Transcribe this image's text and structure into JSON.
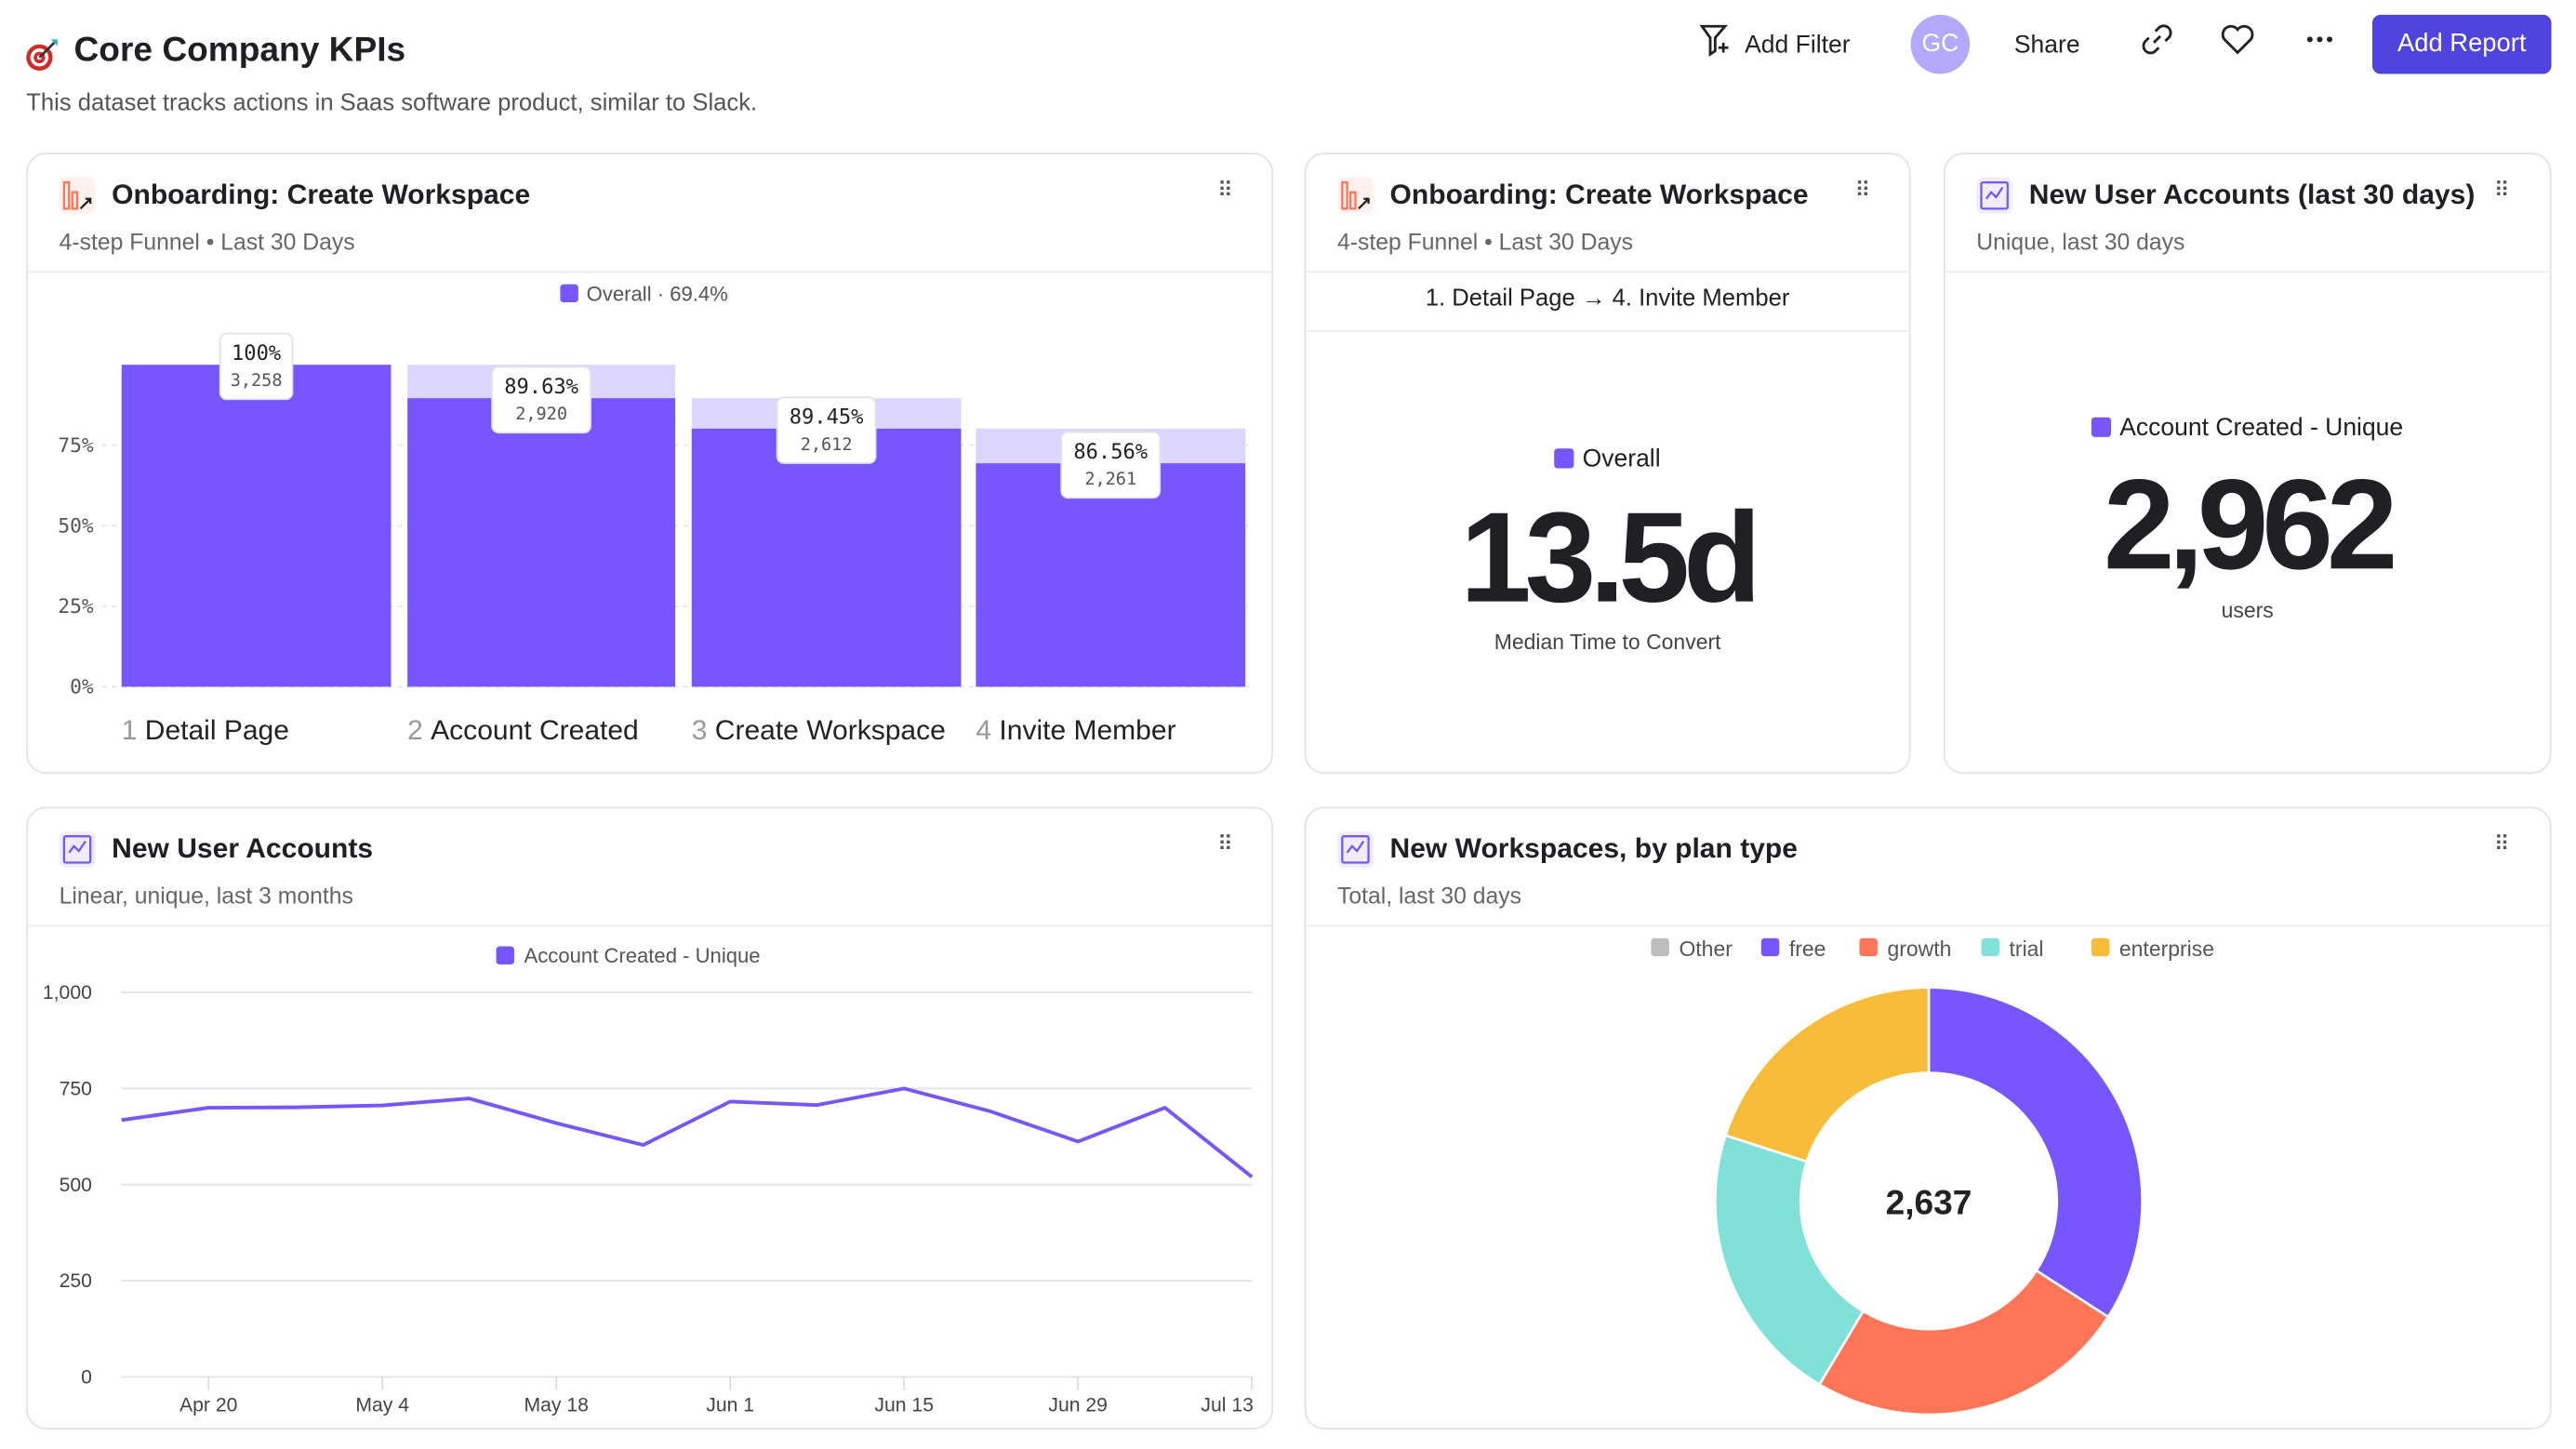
{
  "header": {
    "title": "Core Company KPIs",
    "subtitle": "This dataset tracks actions in Saas software product, similar to Slack.",
    "add_filter": "Add Filter",
    "avatar_initials": "GC",
    "share": "Share",
    "add_report": "Add Report",
    "icons": [
      "target-icon",
      "filter-plus-icon",
      "link-icon",
      "heart-icon",
      "more-icon"
    ]
  },
  "colors": {
    "accent": "#7856ff",
    "button": "#4f44e0",
    "avatar": "#b3a9fb",
    "funnel_icon": "#ff7557"
  },
  "cards": [
    {
      "title": "Onboarding: Create Workspace",
      "subtitle": "4-step Funnel • Last 30 Days"
    },
    {
      "title": "Onboarding: Create Workspace",
      "subtitle": "4-step Funnel • Last 30 Days",
      "steps_label": "1. Detail Page → 4. Invite Member",
      "legend": "Overall",
      "value": "13.5d",
      "caption": "Median Time to Convert"
    },
    {
      "title": "New User Accounts (last 30 days)",
      "subtitle": "Unique, last 30 days",
      "legend": "Account Created - Unique",
      "value": "2,962",
      "caption": "users"
    },
    {
      "title": "New User Accounts",
      "subtitle": "Linear, unique, last 3 months"
    },
    {
      "title": "New Workspaces, by plan type",
      "subtitle": "Total, last 30 days"
    }
  ],
  "chart_data": [
    {
      "type": "bar",
      "subtype": "funnel",
      "legend": "Overall · 69.4%",
      "categories": [
        {
          "num": "1",
          "label": "Detail Page"
        },
        {
          "num": "2",
          "label": "Account Created"
        },
        {
          "num": "3",
          "label": "Create Workspace"
        },
        {
          "num": "4",
          "label": "Invite Member"
        }
      ],
      "values": [
        3258,
        2920,
        2612,
        2261
      ],
      "value_labels": [
        "3,258",
        "2,920",
        "2,612",
        "2,261"
      ],
      "step_conversion_labels": [
        "100%",
        "89.63%",
        "89.45%",
        "86.56%"
      ],
      "yticks": [
        "0%",
        "25%",
        "50%",
        "75%"
      ],
      "ylim": [
        0,
        100
      ],
      "color": "#7856ff"
    },
    {
      "type": "line",
      "legend": "Account Created - Unique",
      "color": "#7856ff",
      "x": [
        "Apr 13",
        "Apr 20",
        "Apr 27",
        "May 4",
        "May 11",
        "May 18",
        "May 25",
        "Jun 1",
        "Jun 8",
        "Jun 15",
        "Jun 22",
        "Jun 29",
        "Jul 6",
        "Jul 13"
      ],
      "values": [
        668,
        700,
        701,
        706,
        724,
        660,
        603,
        716,
        707,
        750,
        690,
        612,
        700,
        520
      ],
      "xticks": [
        "Apr 20",
        "May 4",
        "May 18",
        "Jun 1",
        "Jun 15",
        "Jun 29",
        "Jul 13"
      ],
      "yticks": [
        "0",
        "250",
        "500",
        "750",
        "1,000"
      ],
      "ylim": [
        0,
        1000
      ],
      "grid": true
    },
    {
      "type": "pie",
      "subtype": "donut",
      "total_label": "2,637",
      "series": [
        {
          "name": "Other",
          "value": 0,
          "color": "#bdbdbd"
        },
        {
          "name": "free",
          "value": 900,
          "color": "#7856ff"
        },
        {
          "name": "growth",
          "value": 644,
          "color": "#ff7557"
        },
        {
          "name": "trial",
          "value": 565,
          "color": "#80e1d9"
        },
        {
          "name": "enterprise",
          "value": 528,
          "color": "#f8bc3b"
        }
      ],
      "legend": "top"
    }
  ]
}
